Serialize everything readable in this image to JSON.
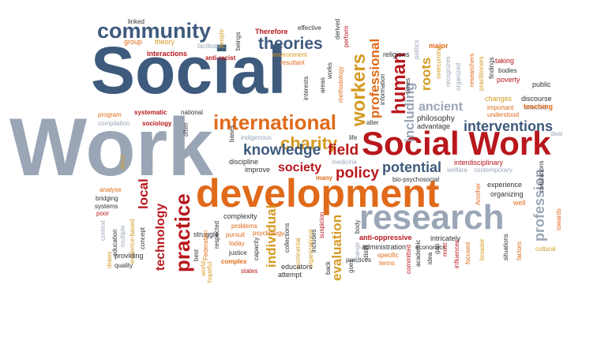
{
  "word_cloud": {
    "palette": {
      "slate": "#3e5a7d",
      "gray": "#9aa6b6",
      "red": "#b8171c",
      "orange": "#e06a1a",
      "gold": "#d59a22",
      "dark": "#2e3338"
    },
    "words": [
      "Social",
      "Work",
      "Social Work",
      "development",
      "research",
      "community",
      "theories",
      "international",
      "charity",
      "workers",
      "professional",
      "human",
      "knowledge",
      "field",
      "society",
      "policy",
      "potential",
      "practice",
      "technology",
      "local",
      "individual",
      "evaluation",
      "profession",
      "interventions",
      "ancient",
      "including",
      "roots",
      "philosophy",
      "advantage",
      "linked",
      "group",
      "theory",
      "facilitate",
      "people",
      "beings",
      "Therefore",
      "effective",
      "derived",
      "perform",
      "environment",
      "resultant",
      "methodology",
      "religions",
      "politics",
      "major",
      "overcoming",
      "recognizes",
      "organized",
      "researchers",
      "practitioners",
      "findings",
      "taking",
      "bodies",
      "poverty",
      "public",
      "changes",
      "discourse",
      "important",
      "affected",
      "teaching",
      "understood",
      "deal",
      "interactions",
      "anti-racist",
      "program",
      "systematic",
      "national",
      "compilation",
      "sociology",
      "often",
      "bases",
      "indigenous",
      "life",
      "alter",
      "information",
      "times",
      "discipline",
      "improve",
      "medicine",
      "welfare",
      "contemporary",
      "interdisciplinary",
      "bio-psychosocial",
      "many",
      "experience",
      "organizing",
      "well",
      "Another",
      "civilizations",
      "towards",
      "analyse",
      "bridging",
      "systems",
      "poor",
      "context",
      "education",
      "multiple",
      "evidence-based",
      "concept",
      "direct",
      "draws",
      "quality",
      "providing",
      "struggle",
      "best",
      "respected",
      "Federation",
      "world",
      "hopeful",
      "complexity",
      "problems",
      "pursuit",
      "today",
      "justice",
      "complex",
      "psychology",
      "capacity",
      "states",
      "collections",
      "continental",
      "organizational",
      "educators",
      "attempt",
      "includes",
      "suspicion",
      "back",
      "goes",
      "practices",
      "body",
      "change",
      "distill",
      "anti-oppressive",
      "administration",
      "specific",
      "terms",
      "committed",
      "academic",
      "economics",
      "intricately",
      "idea",
      "gap",
      "must",
      "influences",
      "focused",
      "broader",
      "situations",
      "factors",
      "cultural",
      "areas",
      "works",
      "interests"
    ]
  }
}
